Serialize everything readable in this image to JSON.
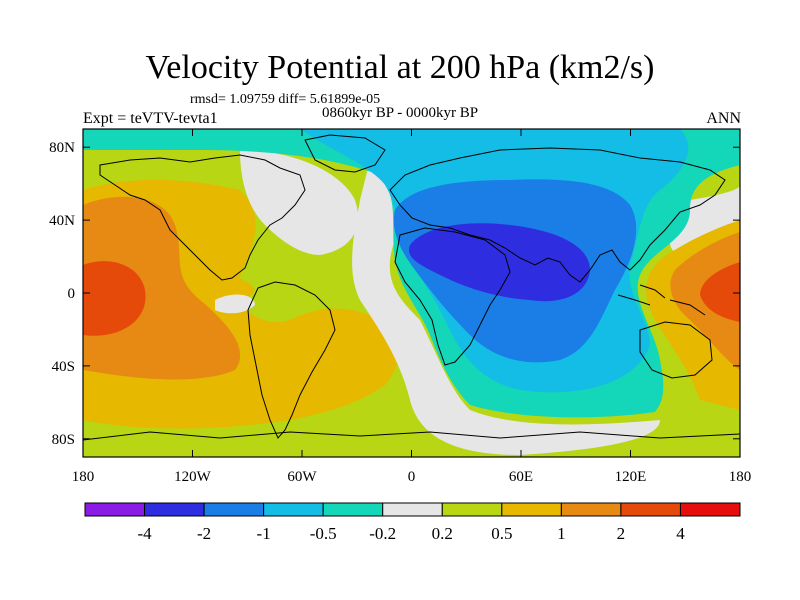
{
  "title": "Velocity Potential at 200 hPa (km2/s)",
  "stats": "rmsd= 1.09759 diff= 5.61899e-05",
  "period": "0860kyr BP - 0000kyr BP",
  "experiment": "Expt = teVTV-tevta1",
  "season": "ANN",
  "map": {
    "projection": "cylindrical equidistant",
    "lon_range": [
      -180,
      180
    ],
    "lat_range": [
      -90,
      90
    ],
    "lon_ticks": [
      {
        "value": -180,
        "label": "180"
      },
      {
        "value": -120,
        "label": "120W"
      },
      {
        "value": -60,
        "label": "60W"
      },
      {
        "value": 0,
        "label": "0"
      },
      {
        "value": 60,
        "label": "60E"
      },
      {
        "value": 120,
        "label": "120E"
      },
      {
        "value": 180,
        "label": "180"
      }
    ],
    "lat_ticks": [
      {
        "value": 80,
        "label": "80N"
      },
      {
        "value": 40,
        "label": "40N"
      },
      {
        "value": 0,
        "label": "0"
      },
      {
        "value": -40,
        "label": "40S"
      },
      {
        "value": -80,
        "label": "80S"
      }
    ]
  },
  "colorbar": {
    "levels": [
      "-4",
      "-2",
      "-1",
      "-0.5",
      "-0.2",
      "0.2",
      "0.5",
      "1",
      "2",
      "4"
    ],
    "colors": [
      "#8a1ce6",
      "#2e2ee0",
      "#1a7ee6",
      "#14bde6",
      "#14d6b8",
      "#e6e6e6",
      "#b8d614",
      "#e6b800",
      "#e68a14",
      "#e64a0a",
      "#e60d0d"
    ]
  },
  "chart_data": {
    "type": "contour-map",
    "variable": "velocity potential",
    "units": "km2/s",
    "contour_levels": [
      -4,
      -2,
      -1,
      -0.5,
      -0.2,
      0.2,
      0.5,
      1,
      2,
      4
    ],
    "features": [
      {
        "name": "negative center (Africa / Arabia)",
        "lon": 35,
        "lat": 15,
        "value_range": "-4 to -2"
      },
      {
        "name": "positive center (central Pacific)",
        "lon": -150,
        "lat": 5,
        "value_range": "2 to 4"
      },
      {
        "name": "positive center (western Pacific)",
        "lon": 150,
        "lat": 5,
        "value_range": "2 to 4"
      }
    ]
  }
}
